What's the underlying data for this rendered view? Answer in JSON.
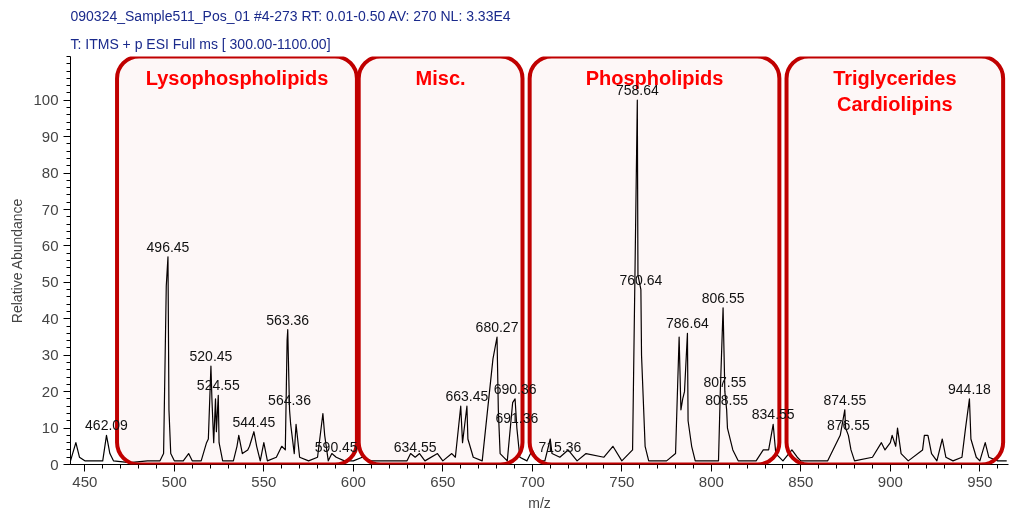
{
  "chart_data": {
    "type": "line",
    "title": "090324_Sample511_Pos_01 #4-273  RT: 0.01-0.50  AV: 270  NL: 3.33E4",
    "subtitle": "T: ITMS + p ESI Full ms [ 300.00-1100.00]",
    "xlabel": "m/z",
    "ylabel": "Relative Abundance",
    "series": [
      {
        "color": "#000000",
        "x": [
          442,
          445,
          447,
          450,
          455,
          460,
          462.1,
          464,
          466,
          475,
          485,
          492,
          494,
          495.5,
          496.45,
          497,
          498,
          500,
          505,
          508,
          510,
          515,
          518,
          519,
          520.45,
          521,
          522,
          523,
          523.5,
          524.55,
          525,
          527,
          533,
          535,
          536,
          538,
          541,
          542,
          544.45,
          546,
          548,
          550,
          552,
          557,
          560,
          562,
          563,
          563.36,
          564.36,
          565,
          567,
          568,
          570,
          575,
          580,
          583,
          584,
          586,
          588,
          590.45,
          595,
          600,
          605,
          610,
          620,
          630,
          632,
          634.55,
          637,
          640,
          647,
          650,
          655,
          657,
          660,
          661,
          663.45,
          664,
          667,
          672,
          678,
          680.27,
          681,
          682,
          686,
          689,
          690.36,
          691.36,
          693,
          697,
          700,
          703,
          707,
          710,
          711,
          715.36,
          720,
          725,
          730,
          740,
          745,
          750,
          756,
          758.64,
          759,
          760.64,
          761,
          763,
          765,
          775,
          780,
          782,
          783,
          784,
          785,
          786.64,
          787,
          789,
          791,
          800,
          804,
          805,
          806.55,
          807.55,
          808.55,
          809,
          812,
          815,
          825,
          829,
          832,
          834.55,
          836,
          840,
          845,
          848,
          850,
          865,
          872,
          874.55,
          875,
          876.55,
          878,
          880,
          890,
          895,
          897,
          900,
          901,
          903,
          904,
          906,
          910,
          918,
          919,
          921,
          923,
          926,
          929,
          931,
          935,
          940,
          942,
          944.18,
          945,
          948,
          950,
          953,
          955,
          960,
          965
        ],
        "values": [
          1,
          6,
          2,
          1,
          1,
          1,
          8,
          3,
          1,
          0.5,
          1,
          1,
          3,
          49,
          57,
          15,
          3,
          1,
          1,
          3,
          1,
          1,
          6,
          7,
          27,
          18,
          6,
          18,
          9,
          19,
          6,
          1,
          1,
          5,
          8,
          3,
          4,
          5,
          9,
          5,
          1,
          6,
          1,
          2,
          5,
          4,
          34,
          37,
          15,
          11,
          3,
          11,
          2,
          1,
          2,
          14,
          8,
          1,
          3,
          2,
          1,
          1,
          2,
          1,
          1,
          1,
          3,
          2,
          3,
          1,
          3,
          1,
          3,
          2,
          16,
          6,
          16,
          7,
          2,
          1,
          29,
          35,
          15,
          3,
          1,
          17,
          18,
          10,
          2,
          1,
          4,
          1,
          1,
          7,
          3,
          2,
          4,
          1,
          3,
          2,
          5,
          1,
          4,
          100,
          52,
          48,
          30,
          5,
          1,
          1,
          3,
          35,
          15,
          18,
          20,
          36,
          12,
          5,
          1,
          1,
          1,
          20,
          43,
          20,
          15,
          10,
          4,
          1,
          1,
          4,
          4,
          11,
          3,
          1,
          4,
          2,
          1,
          1,
          8,
          15,
          10,
          8,
          4,
          1,
          2,
          6,
          4,
          6,
          8,
          5,
          10,
          3,
          1,
          4,
          8,
          8,
          3,
          1,
          7,
          2,
          1,
          2,
          10,
          18,
          7,
          2,
          1,
          6,
          2,
          1,
          1
        ]
      }
    ],
    "xlim": [
      442,
      966
    ],
    "ylim": [
      0,
      112
    ],
    "xticks": [
      450,
      500,
      550,
      600,
      650,
      700,
      750,
      800,
      850,
      900,
      950
    ],
    "yticks": [
      0,
      10,
      20,
      30,
      40,
      50,
      60,
      70,
      80,
      90,
      100
    ],
    "grid": false,
    "marker": "none",
    "line_style": "solid",
    "annotations": [
      {
        "text": "462.09",
        "x": 462.1,
        "y": 8
      },
      {
        "text": "496.45",
        "x": 496.45,
        "y": 57
      },
      {
        "text": "520.45",
        "x": 520.45,
        "y": 27
      },
      {
        "text": "524.55",
        "x": 524.55,
        "y": 19
      },
      {
        "text": "544.45",
        "x": 544.45,
        "y": 9
      },
      {
        "text": "563.36",
        "x": 563.36,
        "y": 37
      },
      {
        "text": "564.36",
        "x": 564.36,
        "y": 15
      },
      {
        "text": "590.45",
        "x": 590.45,
        "y": 2
      },
      {
        "text": "634.55",
        "x": 634.55,
        "y": 2
      },
      {
        "text": "663.45",
        "x": 663.45,
        "y": 16
      },
      {
        "text": "680.27",
        "x": 680.27,
        "y": 35
      },
      {
        "text": "690.36",
        "x": 690.36,
        "y": 18
      },
      {
        "text": "691.36",
        "x": 691.36,
        "y": 10
      },
      {
        "text": "715.36",
        "x": 715.36,
        "y": 2
      },
      {
        "text": "758.64",
        "x": 758.64,
        "y": 100
      },
      {
        "text": "760.64",
        "x": 760.64,
        "y": 48
      },
      {
        "text": "786.64",
        "x": 786.64,
        "y": 36
      },
      {
        "text": "806.55",
        "x": 806.55,
        "y": 43
      },
      {
        "text": "807.55",
        "x": 807.55,
        "y": 20
      },
      {
        "text": "808.55",
        "x": 808.55,
        "y": 15
      },
      {
        "text": "834.55",
        "x": 834.55,
        "y": 11
      },
      {
        "text": "874.55",
        "x": 874.55,
        "y": 15
      },
      {
        "text": "876.55",
        "x": 876.55,
        "y": 8
      },
      {
        "text": "944.18",
        "x": 944.18,
        "y": 18
      }
    ],
    "bands": [
      {
        "axis": "x",
        "from": 468,
        "to": 602,
        "label": "Lysophospholipids",
        "color": "#c00000"
      },
      {
        "axis": "x",
        "from": 603,
        "to": 694.5,
        "label": "Misc.",
        "color": "#c00000"
      },
      {
        "axis": "x",
        "from": 698.5,
        "to": 838,
        "label": "Phospholipids",
        "color": "#c00000"
      },
      {
        "axis": "x",
        "from": 842,
        "to": 963,
        "label": "Triglycerides\nCardiolipins",
        "color": "#c00000"
      }
    ]
  }
}
